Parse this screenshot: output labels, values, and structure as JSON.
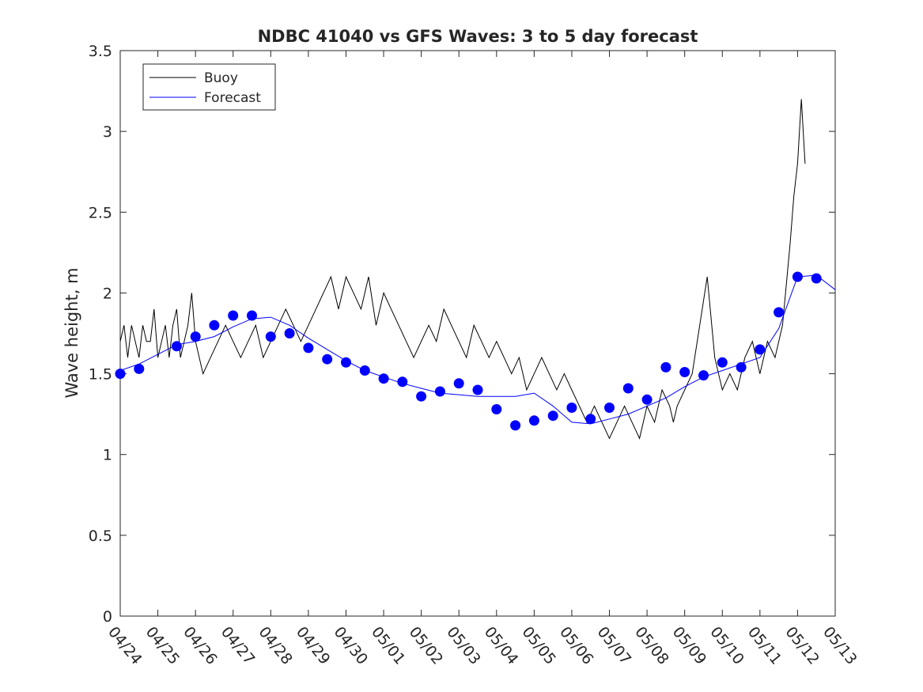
{
  "chart_data": {
    "type": "line",
    "title": "NDBC 41040 vs GFS Waves: 3 to 5 day forecast",
    "xlabel": "",
    "ylabel": "Wave height, m",
    "x_ticks": [
      "04/24",
      "04/25",
      "04/26",
      "04/27",
      "04/28",
      "04/29",
      "04/30",
      "05/01",
      "05/02",
      "05/03",
      "05/04",
      "05/05",
      "05/06",
      "05/07",
      "05/08",
      "05/09",
      "05/10",
      "05/11",
      "05/12",
      "05/13"
    ],
    "xlim": [
      0,
      19
    ],
    "ylim": [
      0,
      3.5
    ],
    "y_ticks": [
      "0",
      "0.5",
      "1",
      "1.5",
      "2",
      "2.5",
      "3",
      "3.5"
    ],
    "legend": {
      "position": "top-left",
      "entries": [
        "Buoy",
        "Forecast"
      ]
    },
    "colors": {
      "buoy": "#000000",
      "forecast": "#0000ff",
      "markers": "#0000ff"
    },
    "series": [
      {
        "name": "Buoy",
        "x": [
          0,
          0.1,
          0.2,
          0.3,
          0.4,
          0.5,
          0.6,
          0.7,
          0.8,
          0.9,
          1.0,
          1.1,
          1.2,
          1.3,
          1.4,
          1.5,
          1.6,
          1.7,
          1.8,
          1.9,
          2.0,
          2.2,
          2.4,
          2.6,
          2.8,
          3.0,
          3.2,
          3.4,
          3.6,
          3.8,
          4.0,
          4.2,
          4.4,
          4.6,
          4.8,
          5.0,
          5.2,
          5.4,
          5.6,
          5.8,
          6.0,
          6.2,
          6.4,
          6.6,
          6.8,
          7.0,
          7.2,
          7.4,
          7.6,
          7.8,
          8.0,
          8.2,
          8.4,
          8.6,
          8.8,
          9.0,
          9.2,
          9.4,
          9.6,
          9.8,
          10.0,
          10.2,
          10.4,
          10.6,
          10.8,
          11.0,
          11.2,
          11.4,
          11.6,
          11.8,
          12.0,
          12.2,
          12.4,
          12.6,
          12.8,
          13.0,
          13.2,
          13.4,
          13.6,
          13.8,
          14.0,
          14.2,
          14.4,
          14.6,
          14.7,
          14.8,
          15.0,
          15.2,
          15.4,
          15.6,
          15.8,
          16.0,
          16.2,
          16.4,
          16.6,
          16.8,
          17.0,
          17.2,
          17.4,
          17.6,
          17.8,
          17.9,
          18.0,
          18.1,
          18.2
        ],
        "y": [
          1.7,
          1.8,
          1.6,
          1.8,
          1.7,
          1.6,
          1.8,
          1.7,
          1.7,
          1.9,
          1.6,
          1.7,
          1.8,
          1.6,
          1.8,
          1.9,
          1.6,
          1.7,
          1.8,
          2.0,
          1.7,
          1.5,
          1.6,
          1.7,
          1.8,
          1.7,
          1.6,
          1.7,
          1.8,
          1.6,
          1.7,
          1.8,
          1.9,
          1.8,
          1.7,
          1.8,
          1.9,
          2.0,
          2.1,
          1.9,
          2.1,
          2.0,
          1.9,
          2.1,
          1.8,
          2.0,
          1.9,
          1.8,
          1.7,
          1.6,
          1.7,
          1.8,
          1.7,
          1.9,
          1.8,
          1.7,
          1.6,
          1.8,
          1.7,
          1.6,
          1.7,
          1.6,
          1.5,
          1.6,
          1.4,
          1.5,
          1.6,
          1.5,
          1.4,
          1.5,
          1.4,
          1.3,
          1.2,
          1.3,
          1.2,
          1.1,
          1.2,
          1.3,
          1.2,
          1.1,
          1.3,
          1.2,
          1.4,
          1.3,
          1.2,
          1.3,
          1.4,
          1.5,
          1.8,
          2.1,
          1.6,
          1.4,
          1.5,
          1.4,
          1.6,
          1.7,
          1.5,
          1.7,
          1.6,
          1.8,
          2.3,
          2.6,
          2.8,
          3.2,
          2.8
        ]
      },
      {
        "name": "Forecast",
        "x": [
          0,
          0.5,
          1.0,
          1.5,
          2.0,
          2.5,
          3.0,
          3.5,
          4.0,
          4.5,
          5.0,
          5.5,
          6.0,
          6.5,
          7.0,
          7.5,
          8.0,
          8.5,
          9.0,
          9.5,
          10.0,
          10.5,
          11.0,
          11.5,
          12.0,
          12.5,
          13.0,
          13.5,
          14.0,
          14.5,
          15.0,
          15.5,
          16.0,
          16.5,
          17.0,
          17.5,
          18.0,
          18.5,
          19.0
        ],
        "y": [
          1.52,
          1.56,
          1.62,
          1.68,
          1.7,
          1.73,
          1.79,
          1.84,
          1.85,
          1.8,
          1.72,
          1.65,
          1.58,
          1.52,
          1.48,
          1.44,
          1.41,
          1.38,
          1.37,
          1.36,
          1.36,
          1.36,
          1.38,
          1.3,
          1.2,
          1.19,
          1.22,
          1.25,
          1.3,
          1.35,
          1.42,
          1.48,
          1.52,
          1.56,
          1.6,
          1.78,
          2.1,
          2.11,
          2.02
        ]
      },
      {
        "name": "Forecast markers",
        "x": [
          0,
          0.5,
          1.5,
          2.0,
          2.5,
          3.0,
          3.5,
          4.0,
          4.5,
          5.0,
          5.5,
          6.0,
          6.5,
          7.0,
          7.5,
          8.0,
          8.5,
          9.0,
          9.5,
          10.0,
          10.5,
          11.0,
          11.5,
          12.0,
          12.5,
          13.0,
          13.5,
          14.0,
          14.5,
          15.0,
          15.5,
          16.0,
          16.5,
          17.0,
          17.5,
          18.0,
          18.5
        ],
        "y": [
          1.5,
          1.53,
          1.67,
          1.73,
          1.8,
          1.86,
          1.86,
          1.73,
          1.75,
          1.66,
          1.59,
          1.57,
          1.52,
          1.47,
          1.45,
          1.36,
          1.39,
          1.44,
          1.4,
          1.28,
          1.18,
          1.21,
          1.24,
          1.29,
          1.22,
          1.29,
          1.41,
          1.34,
          1.54,
          1.51,
          1.49,
          1.57,
          1.54,
          1.65,
          1.88,
          2.1,
          2.09
        ]
      }
    ]
  }
}
